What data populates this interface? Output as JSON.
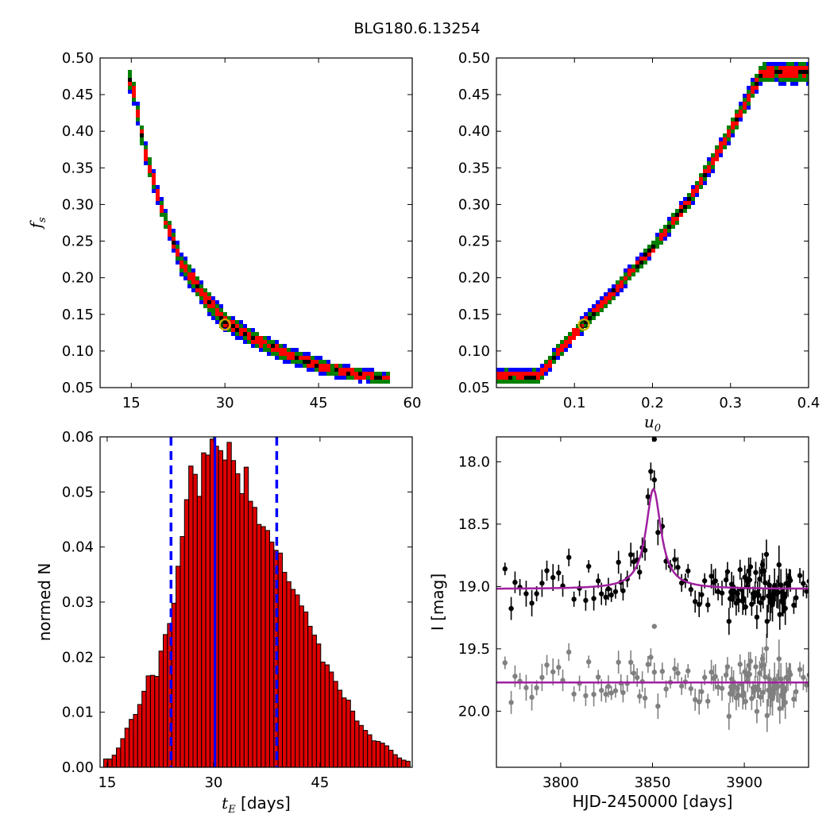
{
  "title": "BLG180.6.13254",
  "colors": {
    "blue": "#0000ff",
    "green": "#008000",
    "red": "#ff0000",
    "black": "#000000",
    "best_fit_marker": "#d4b000",
    "hist_fill": "#dd0000",
    "model": "#a020a0",
    "baseline_points": "#808080"
  },
  "chart_data": [
    {
      "id": "fs_vs_tE",
      "type": "heatmap",
      "title": "",
      "xlabel": "",
      "ylabel_main": "f",
      "ylabel_sub": "s",
      "xlim": [
        10,
        60
      ],
      "ylim": [
        0.05,
        0.5
      ],
      "xticks": [
        15,
        30,
        45,
        60
      ],
      "xtick_labels": [
        "15",
        "30",
        "45",
        "60"
      ],
      "yticks": [
        0.05,
        0.1,
        0.15,
        0.2,
        0.25,
        0.3,
        0.35,
        0.4,
        0.45,
        0.5
      ],
      "ytick_labels": [
        "0.05",
        "0.10",
        "0.15",
        "0.20",
        "0.25",
        "0.30",
        "0.35",
        "0.40",
        "0.45",
        "0.50"
      ],
      "confidence_levels": [
        "blue",
        "green",
        "red",
        "black"
      ],
      "ridge": {
        "x": [
          15,
          17,
          20,
          23,
          27,
          30,
          35,
          40,
          45,
          50,
          56
        ],
        "y": [
          0.47,
          0.38,
          0.29,
          0.22,
          0.17,
          0.14,
          0.115,
          0.095,
          0.08,
          0.07,
          0.062
        ]
      },
      "best_fit": {
        "x": 30,
        "y": 0.136
      }
    },
    {
      "id": "fs_vs_u0",
      "type": "heatmap",
      "title": "",
      "xlabel_main": "u",
      "xlabel_sub": "0",
      "ylabel": "",
      "xlim": [
        0.0,
        0.4
      ],
      "ylim": [
        0.05,
        0.5
      ],
      "xticks": [
        0.1,
        0.2,
        0.3,
        0.4
      ],
      "xtick_labels": [
        "0.1",
        "0.2",
        "0.3",
        "0.4"
      ],
      "yticks": [
        0.05,
        0.1,
        0.15,
        0.2,
        0.25,
        0.3,
        0.35,
        0.4,
        0.45,
        0.5
      ],
      "ytick_labels": [
        "0.05",
        "0.10",
        "0.15",
        "0.20",
        "0.25",
        "0.30",
        "0.35",
        "0.40",
        "0.45",
        "0.50"
      ],
      "ridge": {
        "x": [
          0.055,
          0.08,
          0.11,
          0.15,
          0.2,
          0.25,
          0.3,
          0.34
        ],
        "y": [
          0.065,
          0.1,
          0.135,
          0.18,
          0.24,
          0.31,
          0.4,
          0.48
        ]
      },
      "best_fit": {
        "x": 0.112,
        "y": 0.136
      }
    },
    {
      "id": "tE_histogram",
      "type": "bar",
      "title": "",
      "xlabel_main": "t",
      "xlabel_sub": "E",
      "xlabel_rest": " [days]",
      "ylabel": "normed N",
      "xlim": [
        14,
        58
      ],
      "ylim": [
        0.0,
        0.06
      ],
      "xticks": [
        15,
        30,
        45
      ],
      "xtick_labels": [
        "15",
        "30",
        "45"
      ],
      "yticks": [
        0.0,
        0.01,
        0.02,
        0.03,
        0.04,
        0.05,
        0.06
      ],
      "ytick_labels": [
        "0.00",
        "0.01",
        "0.02",
        "0.03",
        "0.04",
        "0.05",
        "0.06"
      ],
      "bin_start": 14.5,
      "bin_width": 0.6,
      "values": [
        0.0015,
        0.0015,
        0.0022,
        0.0035,
        0.0052,
        0.0071,
        0.0087,
        0.0096,
        0.0114,
        0.0138,
        0.0166,
        0.0167,
        0.0165,
        0.0211,
        0.0241,
        0.0261,
        0.0298,
        0.0365,
        0.0419,
        0.0486,
        0.0547,
        0.0532,
        0.0492,
        0.0571,
        0.0567,
        0.0596,
        0.0583,
        0.0575,
        0.0558,
        0.059,
        0.0557,
        0.0533,
        0.0497,
        0.0545,
        0.0483,
        0.0472,
        0.0441,
        0.0437,
        0.043,
        0.0409,
        0.0394,
        0.0389,
        0.0354,
        0.0337,
        0.0323,
        0.0313,
        0.0293,
        0.0282,
        0.0256,
        0.024,
        0.0224,
        0.0191,
        0.0186,
        0.0173,
        0.0156,
        0.014,
        0.0126,
        0.0122,
        0.0102,
        0.0084,
        0.0076,
        0.0067,
        0.0059,
        0.0048,
        0.0047,
        0.0044,
        0.0039,
        0.0031,
        0.0023,
        0.0017,
        0.0013,
        0.0011,
        0.0007,
        0.0005,
        0.0005,
        0.0004,
        0.0003,
        0.0002,
        0.0002,
        0.0001,
        0.0001,
        0.0001,
        0.0001,
        0.0001,
        0.0
      ],
      "median_line": 30.2,
      "interval_lines": [
        24.0,
        38.9
      ]
    },
    {
      "id": "light_curve",
      "type": "scatter",
      "title": "",
      "xlabel": "HJD-2450000 [days]",
      "ylabel": "I [mag]",
      "xlim": [
        3765,
        3935
      ],
      "ylim_inverted": [
        20.45,
        17.8
      ],
      "xticks": [
        3800,
        3850,
        3900
      ],
      "xtick_labels": [
        "3800",
        "3850",
        "3900"
      ],
      "yticks": [
        18.0,
        18.5,
        19.0,
        19.5,
        20.0
      ],
      "ytick_labels": [
        "18.0",
        "18.5",
        "19.0",
        "19.5",
        "20.0"
      ],
      "model": {
        "t0": 3850.5,
        "baseline": 19.02,
        "peak": 18.22,
        "tau": 5
      },
      "residual_offset": 0.75,
      "series": [
        {
          "name": "",
          "role": "data",
          "color": "black"
        },
        {
          "name": "",
          "role": "residuals",
          "color": "gray"
        }
      ],
      "outliers": [
        {
          "x": 3851,
          "y": 17.78
        },
        {
          "x": 3851,
          "y": 19.32
        }
      ]
    }
  ]
}
